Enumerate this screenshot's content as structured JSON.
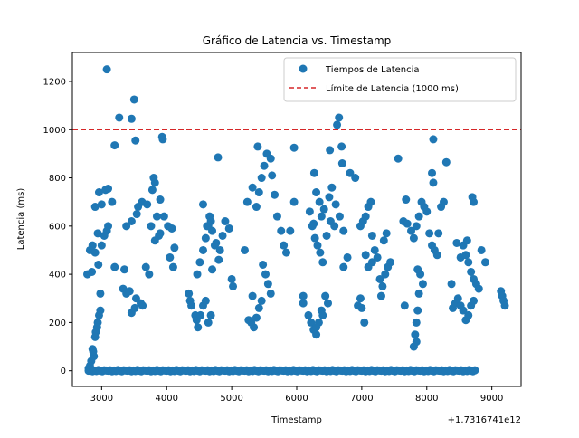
{
  "chart_data": {
    "type": "scatter",
    "title": "Gráfico de Latencia vs. Timestamp",
    "xlabel": "Timestamp",
    "ylabel": "Latencia (ms)",
    "x_offset_label": "+1.7316741e12",
    "xlim": [
      2550,
      9450
    ],
    "ylim": [
      -65,
      1320
    ],
    "xticks": [
      3000,
      4000,
      5000,
      6000,
      7000,
      8000,
      9000
    ],
    "yticks": [
      0,
      200,
      400,
      600,
      800,
      1000,
      1200
    ],
    "grid": false,
    "legend_position": "top-right",
    "colors": {
      "points": "#1f77b4",
      "threshold": "#d62728"
    },
    "threshold": {
      "name": "Límite de Latencia (1000 ms)",
      "y": 1000
    },
    "series": [
      {
        "name": "Tiempos de Latencia",
        "points": [
          [
            3080,
            1250
          ],
          [
            3500,
            1125
          ],
          [
            3270,
            1050
          ],
          [
            3460,
            1045
          ],
          [
            6650,
            1050
          ],
          [
            6620,
            1020
          ],
          [
            3200,
            935
          ],
          [
            3520,
            955
          ],
          [
            3930,
            970
          ],
          [
            3940,
            960
          ],
          [
            5400,
            930
          ],
          [
            5960,
            925
          ],
          [
            6510,
            915
          ],
          [
            6690,
            930
          ],
          [
            7560,
            880
          ],
          [
            8100,
            960
          ],
          [
            8300,
            865
          ],
          [
            4790,
            885
          ],
          [
            2960,
            740
          ],
          [
            3060,
            750
          ],
          [
            3100,
            755
          ],
          [
            3160,
            700
          ],
          [
            2900,
            680
          ],
          [
            3000,
            690
          ],
          [
            3080,
            580
          ],
          [
            2940,
            570
          ],
          [
            3040,
            560
          ],
          [
            2860,
            520
          ],
          [
            2820,
            500
          ],
          [
            2900,
            490
          ],
          [
            2780,
            400
          ],
          [
            2850,
            410
          ],
          [
            2950,
            440
          ],
          [
            3000,
            520
          ],
          [
            3100,
            600
          ],
          [
            2980,
            250
          ],
          [
            2980,
            320
          ],
          [
            2940,
            200
          ],
          [
            2930,
            180
          ],
          [
            2910,
            160
          ],
          [
            2900,
            140
          ],
          [
            2960,
            230
          ],
          [
            2860,
            90
          ],
          [
            2880,
            60
          ],
          [
            2840,
            40
          ],
          [
            2820,
            20
          ],
          [
            2800,
            10
          ],
          [
            2870,
            80
          ],
          [
            3200,
            430
          ],
          [
            3350,
            420
          ],
          [
            3330,
            340
          ],
          [
            3380,
            320
          ],
          [
            3460,
            240
          ],
          [
            3510,
            260
          ],
          [
            3600,
            280
          ],
          [
            3630,
            270
          ],
          [
            3530,
            300
          ],
          [
            3430,
            330
          ],
          [
            3380,
            600
          ],
          [
            3460,
            620
          ],
          [
            3540,
            650
          ],
          [
            3620,
            700
          ],
          [
            3700,
            690
          ],
          [
            3760,
            600
          ],
          [
            3820,
            540
          ],
          [
            3880,
            560
          ],
          [
            3780,
            750
          ],
          [
            3800,
            800
          ],
          [
            3820,
            780
          ],
          [
            3900,
            710
          ],
          [
            3960,
            640
          ],
          [
            4020,
            600
          ],
          [
            4080,
            590
          ],
          [
            4120,
            510
          ],
          [
            4050,
            470
          ],
          [
            4100,
            430
          ],
          [
            3680,
            430
          ],
          [
            3730,
            400
          ],
          [
            3900,
            570
          ],
          [
            3850,
            640
          ],
          [
            3560,
            680
          ],
          [
            4340,
            320
          ],
          [
            4360,
            290
          ],
          [
            4380,
            270
          ],
          [
            4440,
            230
          ],
          [
            4460,
            210
          ],
          [
            4480,
            180
          ],
          [
            4520,
            230
          ],
          [
            4560,
            270
          ],
          [
            4600,
            290
          ],
          [
            4640,
            200
          ],
          [
            4680,
            230
          ],
          [
            4700,
            420
          ],
          [
            4470,
            400
          ],
          [
            4510,
            450
          ],
          [
            4560,
            500
          ],
          [
            4600,
            550
          ],
          [
            4640,
            600
          ],
          [
            4660,
            640
          ],
          [
            4700,
            580
          ],
          [
            4760,
            530
          ],
          [
            4820,
            500
          ],
          [
            4860,
            560
          ],
          [
            4900,
            620
          ],
          [
            4960,
            590
          ],
          [
            4560,
            690
          ],
          [
            4620,
            600
          ],
          [
            4680,
            620
          ],
          [
            4740,
            520
          ],
          [
            4800,
            460
          ],
          [
            5000,
            380
          ],
          [
            5020,
            350
          ],
          [
            5200,
            500
          ],
          [
            5240,
            700
          ],
          [
            5320,
            760
          ],
          [
            5380,
            680
          ],
          [
            5420,
            740
          ],
          [
            5460,
            800
          ],
          [
            5500,
            850
          ],
          [
            5540,
            900
          ],
          [
            5600,
            880
          ],
          [
            5620,
            810
          ],
          [
            5660,
            730
          ],
          [
            5700,
            640
          ],
          [
            5760,
            580
          ],
          [
            5800,
            520
          ],
          [
            5840,
            490
          ],
          [
            5900,
            580
          ],
          [
            5960,
            700
          ],
          [
            5480,
            440
          ],
          [
            5520,
            400
          ],
          [
            5560,
            360
          ],
          [
            5600,
            320
          ],
          [
            5460,
            290
          ],
          [
            5420,
            260
          ],
          [
            5380,
            220
          ],
          [
            5340,
            180
          ],
          [
            5300,
            200
          ],
          [
            5260,
            210
          ],
          [
            5320,
            310
          ],
          [
            6100,
            310
          ],
          [
            6100,
            280
          ],
          [
            6180,
            230
          ],
          [
            6220,
            200
          ],
          [
            6260,
            170
          ],
          [
            6300,
            150
          ],
          [
            6340,
            200
          ],
          [
            6380,
            250
          ],
          [
            6400,
            230
          ],
          [
            6440,
            310
          ],
          [
            6480,
            280
          ],
          [
            6300,
            180
          ],
          [
            6200,
            660
          ],
          [
            6260,
            610
          ],
          [
            6280,
            550
          ],
          [
            6320,
            520
          ],
          [
            6360,
            490
          ],
          [
            6400,
            450
          ],
          [
            6240,
            600
          ],
          [
            6300,
            740
          ],
          [
            6350,
            700
          ],
          [
            6420,
            670
          ],
          [
            6500,
            720
          ],
          [
            6540,
            760
          ],
          [
            6600,
            690
          ],
          [
            6660,
            640
          ],
          [
            6720,
            580
          ],
          [
            6780,
            470
          ],
          [
            6720,
            430
          ],
          [
            6380,
            640
          ],
          [
            6460,
            560
          ],
          [
            6520,
            620
          ],
          [
            6580,
            600
          ],
          [
            6270,
            820
          ],
          [
            6700,
            860
          ],
          [
            6820,
            820
          ],
          [
            6940,
            270
          ],
          [
            6980,
            300
          ],
          [
            7000,
            260
          ],
          [
            7040,
            200
          ],
          [
            6980,
            600
          ],
          [
            7020,
            620
          ],
          [
            7060,
            640
          ],
          [
            7100,
            680
          ],
          [
            7140,
            700
          ],
          [
            7160,
            560
          ],
          [
            7200,
            500
          ],
          [
            7060,
            480
          ],
          [
            7100,
            430
          ],
          [
            7160,
            450
          ],
          [
            7240,
            470
          ],
          [
            7280,
            380
          ],
          [
            7300,
            310
          ],
          [
            7320,
            350
          ],
          [
            7360,
            400
          ],
          [
            7400,
            430
          ],
          [
            7440,
            450
          ],
          [
            7340,
            540
          ],
          [
            7380,
            570
          ],
          [
            6900,
            800
          ],
          [
            7640,
            620
          ],
          [
            7700,
            610
          ],
          [
            7760,
            580
          ],
          [
            7800,
            550
          ],
          [
            7840,
            600
          ],
          [
            7880,
            640
          ],
          [
            7920,
            700
          ],
          [
            7960,
            680
          ],
          [
            8000,
            660
          ],
          [
            8040,
            570
          ],
          [
            8080,
            520
          ],
          [
            8120,
            500
          ],
          [
            8160,
            480
          ],
          [
            8180,
            570
          ],
          [
            8220,
            680
          ],
          [
            8260,
            700
          ],
          [
            7860,
            420
          ],
          [
            7900,
            400
          ],
          [
            7940,
            360
          ],
          [
            7880,
            320
          ],
          [
            7860,
            250
          ],
          [
            7840,
            200
          ],
          [
            7820,
            150
          ],
          [
            7800,
            100
          ],
          [
            7660,
            270
          ],
          [
            7840,
            120
          ],
          [
            7680,
            710
          ],
          [
            8080,
            820
          ],
          [
            8100,
            780
          ],
          [
            8400,
            260
          ],
          [
            8440,
            280
          ],
          [
            8480,
            300
          ],
          [
            8520,
            270
          ],
          [
            8560,
            250
          ],
          [
            8600,
            210
          ],
          [
            8640,
            230
          ],
          [
            8680,
            270
          ],
          [
            8720,
            290
          ],
          [
            8520,
            470
          ],
          [
            8560,
            520
          ],
          [
            8600,
            480
          ],
          [
            8640,
            450
          ],
          [
            8680,
            410
          ],
          [
            8720,
            380
          ],
          [
            8760,
            360
          ],
          [
            8800,
            340
          ],
          [
            8460,
            530
          ],
          [
            8700,
            720
          ],
          [
            8720,
            700
          ],
          [
            8620,
            540
          ],
          [
            8840,
            500
          ],
          [
            8900,
            450
          ],
          [
            8380,
            360
          ],
          [
            9140,
            330
          ],
          [
            9160,
            310
          ],
          [
            9180,
            290
          ],
          [
            9200,
            270
          ]
        ],
        "zero_band": {
          "x_range": [
            2800,
            8760
          ],
          "step": 30,
          "values": [
            0,
            2,
            -2,
            1,
            -1,
            3,
            0,
            -2,
            2,
            1
          ]
        }
      }
    ]
  }
}
